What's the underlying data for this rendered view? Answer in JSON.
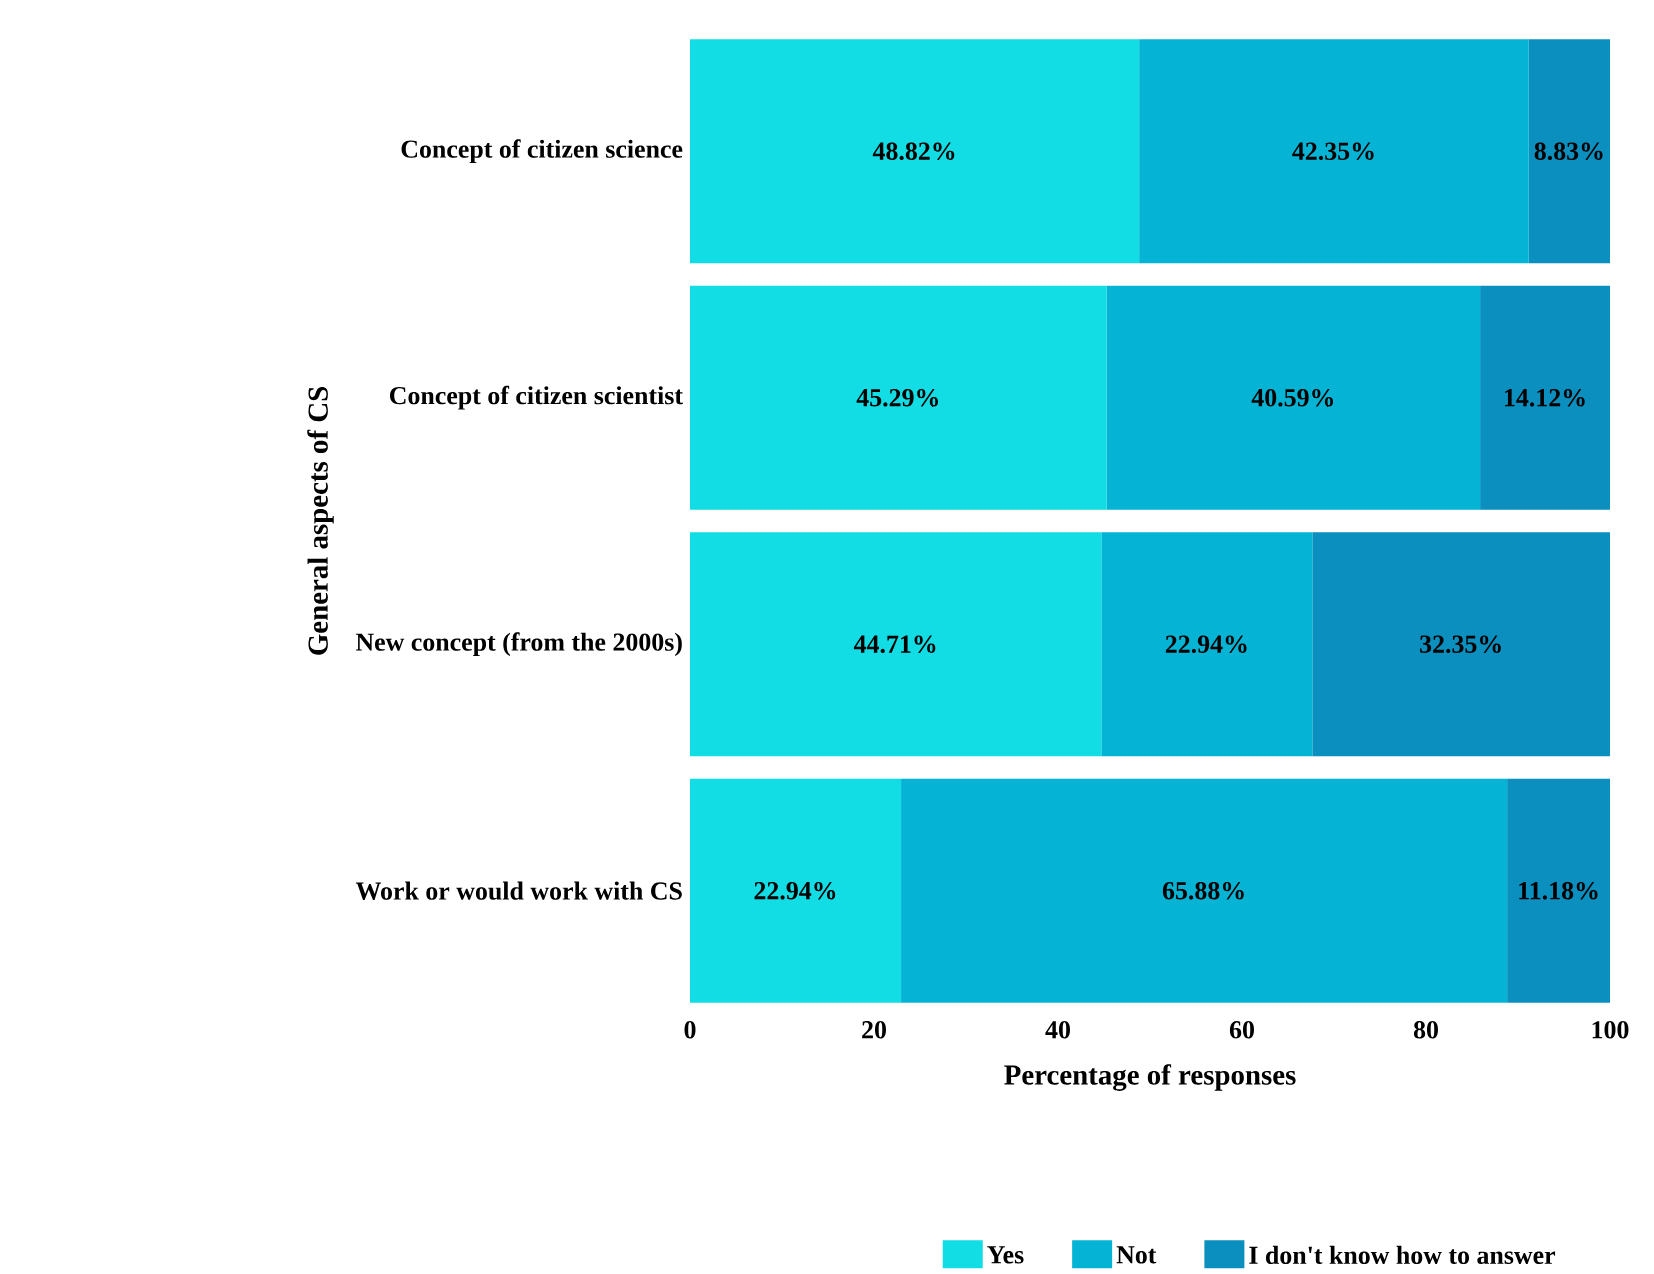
{
  "chart_data": {
    "type": "bar",
    "orientation": "horizontal",
    "stacked": true,
    "categories": [
      "Concept of citizen science",
      "Concept of citizen scientist",
      "New concept (from the 2000s)",
      "Work or would work with CS"
    ],
    "series": [
      {
        "name": "Yes",
        "color": "#12dce4",
        "values": [
          48.82,
          45.29,
          44.71,
          22.94
        ],
        "value_labels": [
          "48.82%",
          "45.29%",
          "44.71%",
          "22.94%"
        ]
      },
      {
        "name": "Not",
        "color": "#05b4d4",
        "values": [
          42.35,
          40.59,
          22.94,
          65.88
        ],
        "value_labels": [
          "42.35%",
          "40.59%",
          "22.94%",
          "65.88%"
        ]
      },
      {
        "name": "I don't know how to answer",
        "color": "#0a8fbf",
        "values": [
          8.83,
          14.12,
          32.35,
          11.18
        ],
        "value_labels": [
          "8.83%",
          "14.12%",
          "32.35%",
          "11.18%"
        ]
      }
    ],
    "xlabel": "Percentage of responses",
    "ylabel": "General aspects of CS",
    "xlim": [
      0,
      100
    ],
    "xticks": [
      0,
      20,
      40,
      60,
      80,
      100
    ],
    "legend": "bottom",
    "grid": false
  }
}
